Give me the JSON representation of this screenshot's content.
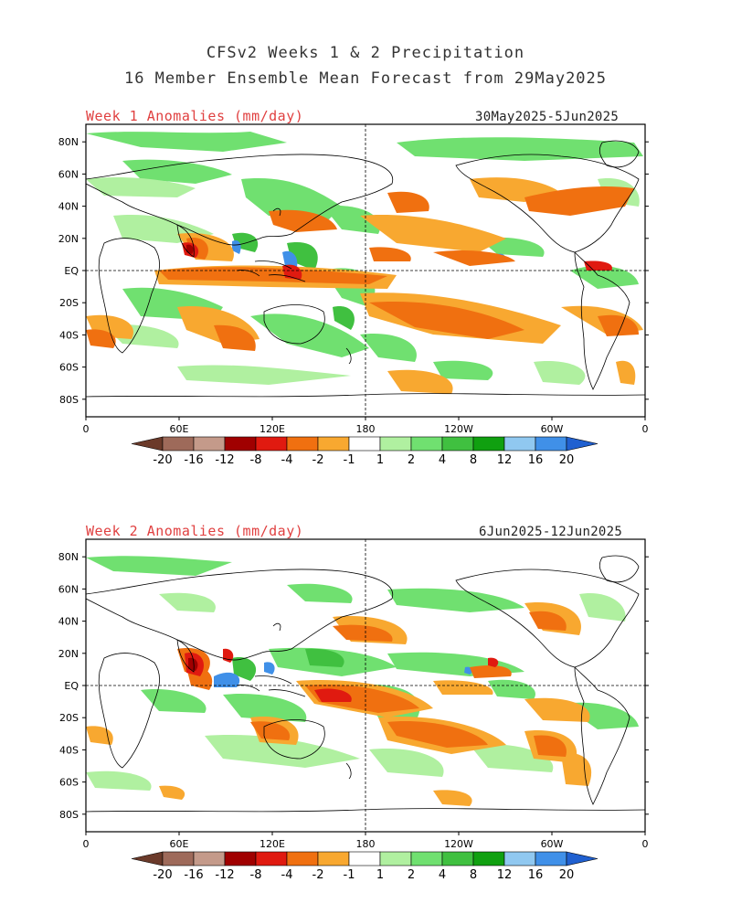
{
  "title_line1": "CFSv2 Weeks 1 & 2 Precipitation",
  "title_line2": "16 Member Ensemble Mean Forecast from 29May2025",
  "panels": [
    {
      "label": "Week 1 Anomalies (mm/day)",
      "dates": "30May2025-5Jun2025"
    },
    {
      "label": "Week 2 Anomalies (mm/day)",
      "dates": "6Jun2025-12Jun2025"
    }
  ],
  "lat_labels": [
    "80N",
    "60N",
    "40N",
    "20N",
    "EQ",
    "20S",
    "40S",
    "60S",
    "80S"
  ],
  "lon_labels": [
    "0",
    "60E",
    "120E",
    "180",
    "120W",
    "60W",
    "0"
  ],
  "colorbar": {
    "colors": [
      "#6b3a2a",
      "#9e6a5a",
      "#c49a8a",
      "#a00000",
      "#e01a10",
      "#f07010",
      "#f8a830",
      "#ffffff",
      "#b0f0a0",
      "#70e070",
      "#40c040",
      "#10a010",
      "#90c8f0",
      "#4090e8",
      "#2060d0"
    ],
    "labels": [
      "-20",
      "-16",
      "-12",
      "-8",
      "-4",
      "-2",
      "-1",
      "1",
      "2",
      "4",
      "8",
      "12",
      "16",
      "20"
    ]
  }
}
